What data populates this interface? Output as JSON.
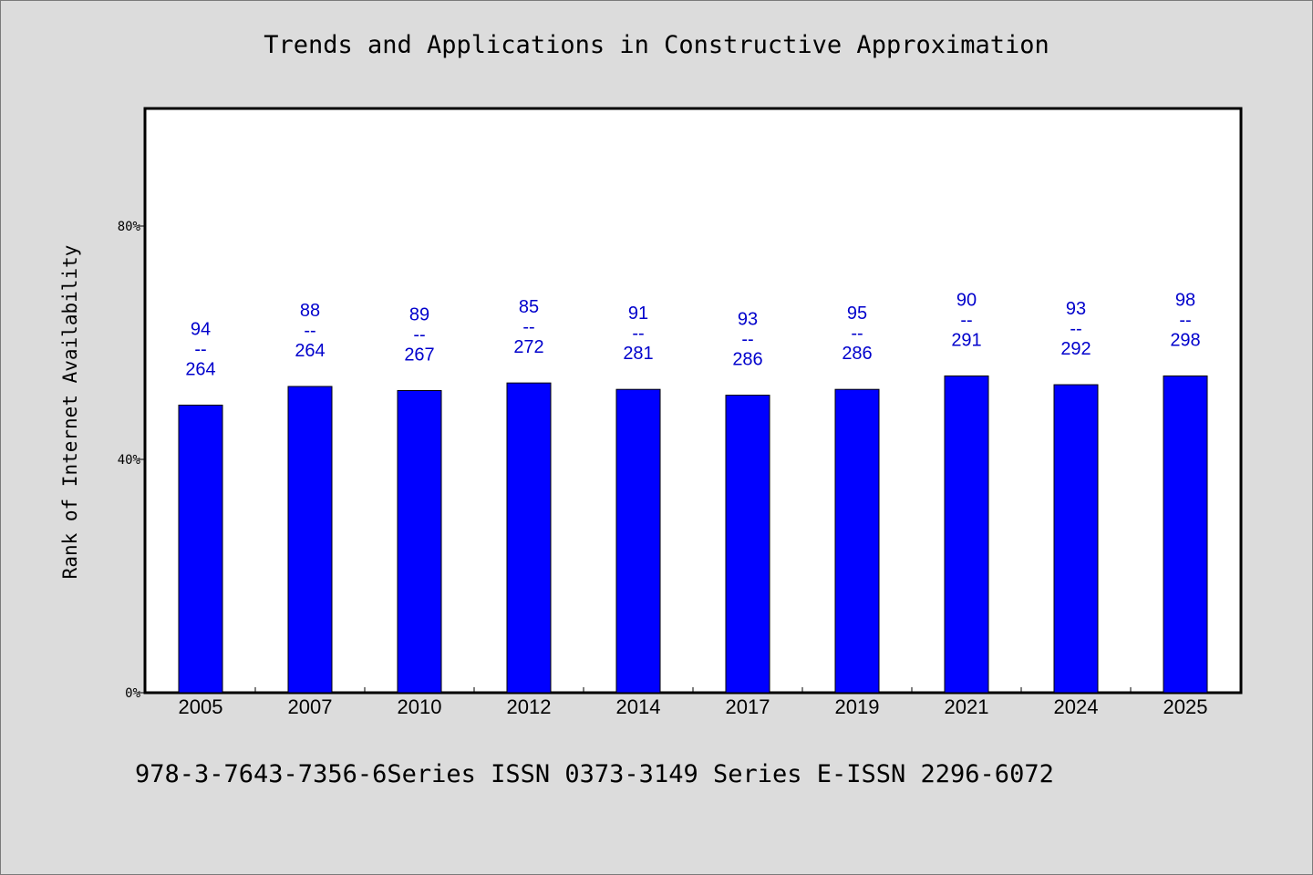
{
  "chart_data": {
    "type": "bar",
    "title": "Trends and Applications in Constructive Approximation",
    "ylabel": "Rank of Internet Availability",
    "xlabel": "",
    "footer": "978-3-7643-7356-6Series ISSN 0373-3149 Series E-ISSN 2296-6072",
    "categories": [
      "2005",
      "2007",
      "2010",
      "2012",
      "2014",
      "2017",
      "2019",
      "2021",
      "2024",
      "2025"
    ],
    "values": [
      0.493,
      0.525,
      0.518,
      0.531,
      0.52,
      0.51,
      0.52,
      0.543,
      0.528,
      0.543
    ],
    "bar_labels": [
      {
        "top": "94",
        "mid": "--",
        "bottom": "264"
      },
      {
        "top": "88",
        "mid": "--",
        "bottom": "264"
      },
      {
        "top": "89",
        "mid": "--",
        "bottom": "267"
      },
      {
        "top": "85",
        "mid": "--",
        "bottom": "272"
      },
      {
        "top": "91",
        "mid": "--",
        "bottom": "281"
      },
      {
        "top": "93",
        "mid": "--",
        "bottom": "286"
      },
      {
        "top": "95",
        "mid": "--",
        "bottom": "286"
      },
      {
        "top": "90",
        "mid": "--",
        "bottom": "291"
      },
      {
        "top": "93",
        "mid": "--",
        "bottom": "292"
      },
      {
        "top": "98",
        "mid": "--",
        "bottom": "298"
      }
    ],
    "yticks": [
      {
        "value": 0,
        "label": "0%"
      },
      {
        "value": 0.4,
        "label": "40%"
      },
      {
        "value": 0.8,
        "label": "80%"
      }
    ],
    "ylim": [
      0,
      1.0
    ],
    "grid": false,
    "colors": {
      "bar": "#0000ff",
      "label": "#0000cc",
      "plot_bg": "#ffffff",
      "page_bg": "#dcdcdc"
    }
  }
}
